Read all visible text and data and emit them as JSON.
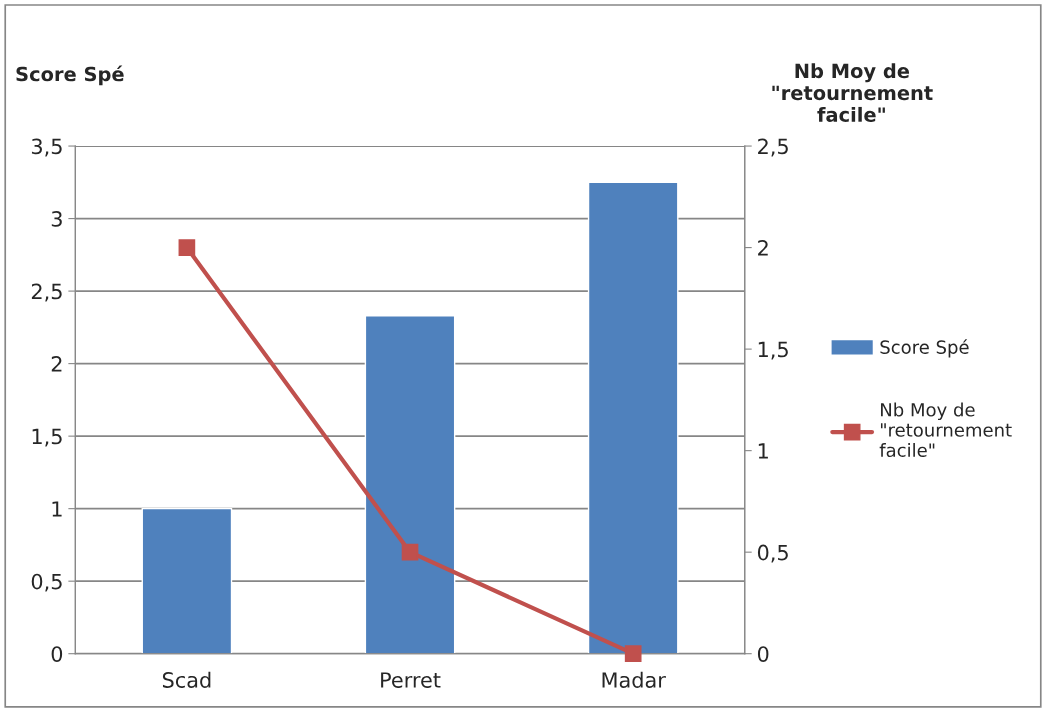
{
  "chart_data": {
    "type": "bar",
    "categories": [
      "Scad",
      "Perret",
      "Madar"
    ],
    "ylabel": "Score Spé",
    "y2label": "Nb Moy de\n\"retournement\nfacile\"",
    "series": [
      {
        "name": "Score Spé",
        "color": "#4f81bd",
        "values": [
          1,
          2.33,
          3.25
        ]
      },
      {
        "name": "Nb Moy de \"retournement facile\"",
        "type": "line",
        "axis": "y2",
        "color": "#c0504d",
        "marker": "square",
        "values": [
          2,
          0.5,
          0
        ]
      }
    ],
    "ylim": [
      0,
      3.5
    ],
    "yticks": [
      0,
      {
        "value": 0.5,
        "label": "0,5"
      },
      1,
      {
        "value": 1.5,
        "label": "1,5"
      },
      2,
      {
        "value": 2.5,
        "label": "2,5"
      },
      3,
      {
        "value": 3.5,
        "label": "3,5"
      }
    ],
    "y2lim": [
      0,
      2.5
    ],
    "y2ticks": [
      0,
      {
        "value": 0.5,
        "label": "0,5"
      },
      1,
      {
        "value": 1.5,
        "label": "1,5"
      },
      2,
      {
        "value": 2.5,
        "label": "2,5"
      }
    ],
    "grid": "y",
    "legend": "right"
  }
}
